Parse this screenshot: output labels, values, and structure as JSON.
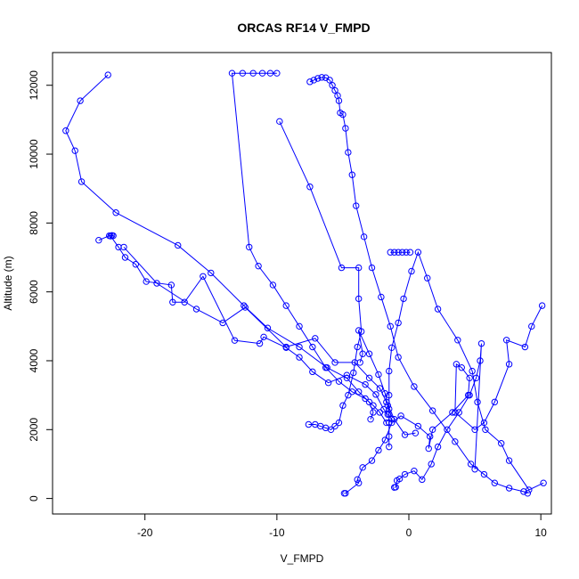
{
  "chart_data": {
    "type": "line",
    "title": "ORCAS RF14 V_FMPD",
    "xlabel": "V_FMPD",
    "ylabel": "Altitude (m)",
    "xlim": [
      -27,
      10.8
    ],
    "ylim": [
      -450,
      12950
    ],
    "xticks": [
      -20,
      -10,
      0,
      10
    ],
    "yticks": [
      0,
      2000,
      4000,
      6000,
      8000,
      10000,
      12000
    ],
    "xtick_labels": [
      "-20",
      "-10",
      "0",
      "10"
    ],
    "ytick_labels": [
      "0",
      "2000",
      "4000",
      "6000",
      "8000",
      "10000",
      "12000"
    ],
    "grid": false,
    "series_color": "#0000ff",
    "series": [
      {
        "x": [
          -4.9,
          -4.8,
          -3.8,
          -3.9,
          -3.5,
          -2.8,
          -2.3,
          -1.8,
          -1.3,
          -0.6,
          0.7,
          1.6,
          1.5,
          1.8,
          3.3,
          4.5,
          4.6,
          4.0,
          3.6,
          3.5,
          5.0,
          5.7,
          6.5,
          7.6,
          7.4,
          8.8,
          9.3,
          10.1
        ],
        "y": [
          150,
          150,
          450,
          550,
          900,
          1100,
          1400,
          1700,
          2200,
          2400,
          2100,
          1800,
          1450,
          2000,
          2500,
          3000,
          3500,
          3800,
          3900,
          2500,
          2000,
          2200,
          2800,
          3900,
          4600,
          4400,
          5000,
          5600
        ]
      },
      {
        "x": [
          -1.1,
          -1.0,
          -0.9,
          -0.7,
          -0.3,
          0.4,
          1.0,
          1.7,
          2.2,
          2.9,
          3.8,
          4.6,
          5.1,
          5.4,
          5.5,
          5.0
        ],
        "y": [
          320,
          330,
          520,
          570,
          700,
          800,
          550,
          1000,
          1500,
          2000,
          2500,
          3000,
          3500,
          4000,
          4500,
          850
        ]
      },
      {
        "x": [
          -23.5,
          -22.7,
          -22.5,
          -22.4,
          -22.6,
          -22.0,
          -21.5,
          -20.7,
          -19.9,
          -18.0,
          -17.9,
          -17.0,
          -15.6,
          -13.2,
          -11.3,
          -11.0,
          -9.3,
          -8.3,
          -7.3,
          -6.1,
          -4.7,
          -3.3,
          -2.5,
          -1.9,
          -1.6,
          -1.3
        ],
        "y": [
          7500,
          7630,
          7640,
          7630,
          7620,
          7300,
          7000,
          6800,
          6300,
          6200,
          5700,
          5700,
          6450,
          4590,
          4500,
          4690,
          4380,
          4100,
          3680,
          3360,
          3580,
          3310,
          3020,
          2590,
          2440,
          2300
        ]
      },
      {
        "x": [
          -21.6,
          -19.1,
          -16.1,
          -14.1,
          -12.4,
          -9.3,
          -7.1,
          -5.6,
          -4.1,
          -3.0,
          -2.2,
          -1.7,
          -1.1,
          -0.3,
          0.5
        ],
        "y": [
          7300,
          6250,
          5500,
          5100,
          5550,
          4400,
          4650,
          3950,
          3950,
          3500,
          3200,
          2800,
          2300,
          1850,
          1900
        ]
      },
      {
        "x": [
          -3.7,
          -3.5,
          -3.8,
          -3.0,
          -2.3,
          -1.8,
          -1.6,
          -1.5,
          -1.5,
          -1.5,
          -1.5,
          -1.5,
          -1.5,
          -1.5,
          -1.5,
          -1.3,
          -0.8,
          -0.4,
          0.2,
          0.7,
          1.4,
          2.2,
          3.7,
          4.8,
          5.2,
          5.8,
          7.0,
          7.6,
          9.1,
          10.2
        ],
        "y": [
          3950,
          4200,
          4880,
          4200,
          3600,
          3050,
          2700,
          2450,
          2200,
          1500,
          1800,
          2200,
          2600,
          3000,
          3700,
          4380,
          5100,
          5800,
          6600,
          7150,
          6400,
          5500,
          4600,
          3700,
          2800,
          2000,
          1600,
          1100,
          250,
          450
        ]
      },
      {
        "x": [
          -1.4,
          -1.1,
          -0.8,
          -0.5,
          -0.2,
          0.1
        ],
        "y": [
          7150,
          7150,
          7150,
          7150,
          7150,
          7150
        ]
      },
      {
        "x": [
          -10.0,
          -10.5,
          -11.1,
          -11.8,
          -12.6,
          -13.4,
          -12.1,
          -11.4,
          -10.3,
          -9.3,
          -8.3,
          -7.3,
          -6.3,
          -5.3,
          -4.3,
          -3.3,
          -2.7,
          -2.2,
          -1.7
        ],
        "y": [
          12350,
          12350,
          12350,
          12350,
          12350,
          12350,
          7300,
          6750,
          6200,
          5600,
          5000,
          4400,
          3800,
          3400,
          3100,
          2900,
          2700,
          2500,
          2200
        ]
      },
      {
        "x": [
          -9.8,
          -7.5,
          -5.1,
          -3.8,
          -3.8,
          -3.6,
          -3.9,
          -4.2,
          -4.6,
          -5.0,
          -5.3,
          -5.6,
          -5.9,
          -6.3,
          -6.7,
          -7.1,
          -7.6
        ],
        "y": [
          10950,
          9050,
          6700,
          6700,
          5800,
          4850,
          4400,
          3650,
          3000,
          2700,
          2200,
          2100,
          2000,
          2050,
          2100,
          2150,
          2150
        ]
      },
      {
        "x": [
          -22.8,
          -24.9,
          -26.0,
          -25.3,
          -24.8,
          -22.2,
          -17.5,
          -15.0,
          -12.5,
          -10.7,
          -8.3,
          -6.2,
          -4.7,
          -3.8,
          -3.0,
          -2.7,
          -2.9
        ],
        "y": [
          12300,
          11550,
          10680,
          10100,
          9200,
          8300,
          7350,
          6550,
          5600,
          4950,
          4400,
          3800,
          3500,
          3100,
          2800,
          2500,
          2300
        ]
      },
      {
        "x": [
          -7.5,
          -7.2,
          -6.9,
          -6.6,
          -6.3,
          -6.0,
          -5.8,
          -5.6,
          -5.4,
          -5.3,
          -5.2,
          -5.0,
          -4.8,
          -4.6,
          -4.3,
          -4.0,
          -3.4,
          -2.8,
          -2.1,
          -1.4,
          -0.8,
          0.4,
          1.8,
          3.5,
          4.7,
          5.7,
          6.5,
          7.6,
          8.7,
          9.0
        ],
        "y": [
          12100,
          12150,
          12200,
          12230,
          12220,
          12150,
          12000,
          11850,
          11700,
          11550,
          11200,
          11150,
          10750,
          10050,
          9400,
          8500,
          7600,
          6700,
          5850,
          5000,
          4100,
          3250,
          2550,
          1650,
          1000,
          700,
          450,
          300,
          200,
          150
        ]
      }
    ]
  }
}
